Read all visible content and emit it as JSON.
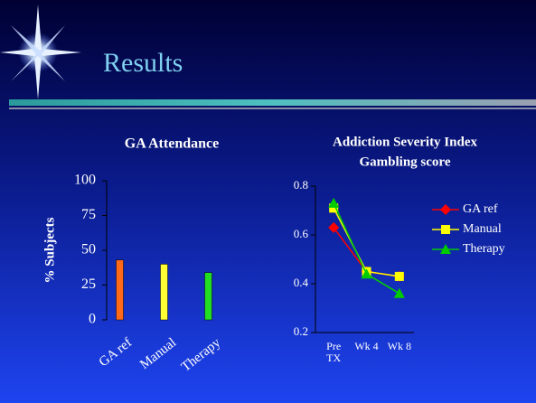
{
  "slide_title": "Results",
  "chart_data": [
    {
      "type": "bar",
      "title": "GA Attendance",
      "ylabel": "% Subjects",
      "categories": [
        "GA ref",
        "Manual",
        "Therapy"
      ],
      "values": [
        43,
        40,
        34
      ],
      "colors": [
        "#ff6a1a",
        "#ffff33",
        "#22dd22"
      ],
      "ylim": [
        0,
        100
      ],
      "yticks": [
        0,
        25,
        50,
        75,
        100
      ],
      "grid": false
    },
    {
      "type": "line",
      "title": "Addiction Severity Index",
      "subtitle": "Gambling score",
      "categories": [
        "Pre TX",
        "Wk 4",
        "Wk 8"
      ],
      "series": [
        {
          "name": "GA ref",
          "color": "#ff0000",
          "marker": "diamond",
          "values": [
            0.63,
            0.45,
            0.43
          ]
        },
        {
          "name": "Manual",
          "color": "#ffff00",
          "marker": "square",
          "values": [
            0.71,
            0.45,
            0.43
          ]
        },
        {
          "name": "Therapy",
          "color": "#00cc00",
          "marker": "triangle",
          "values": [
            0.73,
            0.44,
            0.36
          ]
        }
      ],
      "ylim": [
        0.2,
        0.8
      ],
      "yticks": [
        0.2,
        0.4,
        0.6,
        0.8
      ],
      "grid": false,
      "legend": "right"
    }
  ]
}
